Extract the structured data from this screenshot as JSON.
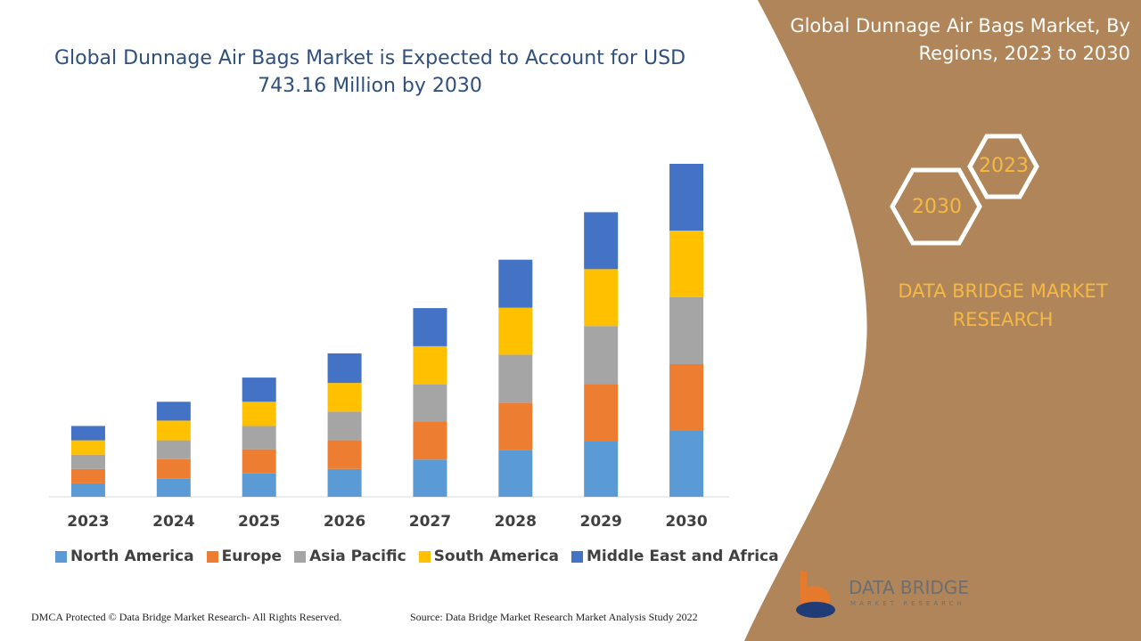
{
  "chart_data": {
    "type": "bar",
    "stacked": true,
    "title": "Global Dunnage Air Bags Market is Expected to Account for USD 743.16 Million by 2030",
    "categories": [
      "2023",
      "2024",
      "2025",
      "2026",
      "2027",
      "2028",
      "2029",
      "2030"
    ],
    "series": [
      {
        "name": "North America",
        "color": "#5b9bd5",
        "values": [
          30,
          40,
          52,
          62,
          83,
          105,
          125,
          147
        ]
      },
      {
        "name": "Europe",
        "color": "#ed7d31",
        "values": [
          32,
          44,
          54,
          64,
          85,
          105,
          127,
          149
        ]
      },
      {
        "name": "Asia Pacific",
        "color": "#a5a5a5",
        "values": [
          32,
          42,
          52,
          64,
          83,
          107,
          129,
          149
        ]
      },
      {
        "name": "South America",
        "color": "#ffc000",
        "values": [
          32,
          44,
          54,
          64,
          85,
          105,
          127,
          149
        ]
      },
      {
        "name": "Middle East and Africa",
        "color": "#4472c4",
        "values": [
          32,
          42,
          54,
          66,
          85,
          107,
          127,
          149
        ]
      }
    ]
  },
  "side_panel": {
    "title": "Global Dunnage Air Bags Market, By Regions, 2023 to 2030",
    "hexagons": [
      "2023",
      "2030"
    ],
    "brand": "DATA BRIDGE MARKET RESEARCH"
  },
  "logo": {
    "name": "DATA BRIDGE",
    "tagline": "MARKET RESEARCH"
  },
  "footer": {
    "copyright": "DMCA Protected © Data Bridge Market Research- All Rights Reserved.",
    "source": "Source: Data Bridge Market Research Market Analysis Study 2022"
  }
}
